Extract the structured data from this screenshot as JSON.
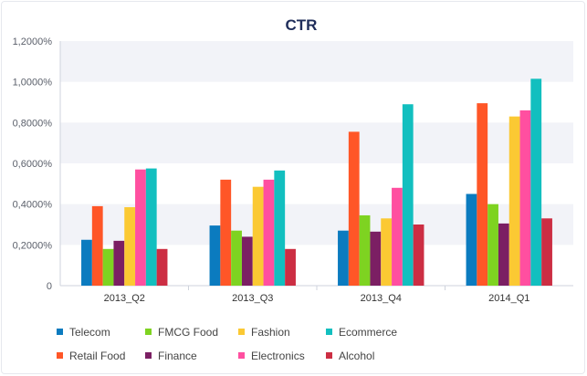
{
  "chart_data": {
    "type": "bar",
    "title": "CTR",
    "categories": [
      "2013_Q2",
      "2013_Q3",
      "2013_Q4",
      "2014_Q1"
    ],
    "ylim": [
      0,
      1.2
    ],
    "yticks": [
      0,
      0.2,
      0.4,
      0.6,
      0.8,
      1.0,
      1.2
    ],
    "ytick_labels": [
      "0",
      "0,2000%",
      "0,4000%",
      "0,6000%",
      "0,8000%",
      "1,0000%",
      "1,2000%"
    ],
    "grid": "alternating horizontal bands",
    "legend_position": "bottom",
    "series": [
      {
        "name": "Telecom",
        "color": "#0b7bbf",
        "values": [
          0.225,
          0.295,
          0.27,
          0.45
        ]
      },
      {
        "name": "Retail Food",
        "color": "#ff5627",
        "values": [
          0.39,
          0.52,
          0.755,
          0.895
        ]
      },
      {
        "name": "FMCG Food",
        "color": "#7ed321",
        "values": [
          0.18,
          0.27,
          0.345,
          0.4
        ]
      },
      {
        "name": "Finance",
        "color": "#7b1f63",
        "values": [
          0.22,
          0.24,
          0.265,
          0.305
        ]
      },
      {
        "name": "Fashion",
        "color": "#fbc933",
        "values": [
          0.385,
          0.485,
          0.33,
          0.83
        ]
      },
      {
        "name": "Electronics",
        "color": "#ff4fa0",
        "values": [
          0.57,
          0.52,
          0.48,
          0.86
        ]
      },
      {
        "name": "Ecommerce",
        "color": "#12bfbf",
        "values": [
          0.575,
          0.565,
          0.89,
          1.015
        ]
      },
      {
        "name": "Alcohol",
        "color": "#cc2e43",
        "values": [
          0.18,
          0.18,
          0.3,
          0.33
        ]
      }
    ],
    "legend_order": [
      "Telecom",
      "FMCG Food",
      "Fashion",
      "Ecommerce",
      "Retail Food",
      "Finance",
      "Electronics",
      "Alcohol"
    ]
  }
}
